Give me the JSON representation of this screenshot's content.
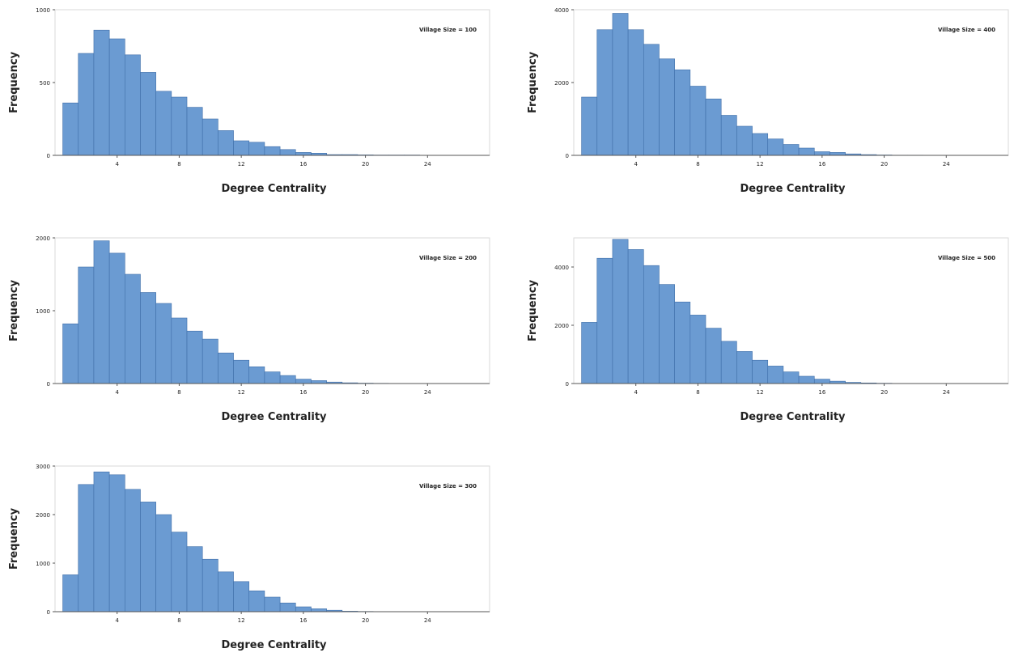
{
  "chart_data": [
    {
      "type": "bar",
      "annotation": "Village Size = 100",
      "xlabel": "Degree Centrality",
      "ylabel": "Frequency",
      "xlim": [
        0,
        28
      ],
      "ylim": [
        0,
        1000
      ],
      "xticks": [
        4,
        8,
        12,
        16,
        20,
        24
      ],
      "yticks": [
        0,
        500,
        1000
      ],
      "bin_width": 1,
      "x": [
        1,
        2,
        3,
        4,
        5,
        6,
        7,
        8,
        9,
        10,
        11,
        12,
        13,
        14,
        15,
        16,
        17,
        18,
        19,
        20,
        21,
        22,
        23,
        24,
        25,
        26,
        27
      ],
      "values": [
        360,
        700,
        860,
        800,
        690,
        570,
        440,
        400,
        330,
        250,
        170,
        100,
        90,
        60,
        40,
        20,
        15,
        5,
        5,
        3,
        2,
        2,
        2,
        1,
        1,
        1,
        1
      ],
      "color": "#6b9bd2",
      "edge_color": "#3f6ea8"
    },
    {
      "type": "bar",
      "annotation": "Village Size = 400",
      "xlabel": "Degree Centrality",
      "ylabel": "Frequency",
      "xlim": [
        0,
        28
      ],
      "ylim": [
        0,
        4000
      ],
      "xticks": [
        4,
        8,
        12,
        16,
        20,
        24
      ],
      "yticks": [
        0,
        2000,
        4000
      ],
      "bin_width": 1,
      "x": [
        1,
        2,
        3,
        4,
        5,
        6,
        7,
        8,
        9,
        10,
        11,
        12,
        13,
        14,
        15,
        16,
        17,
        18,
        19,
        20,
        21,
        22,
        23,
        24,
        25,
        26,
        27
      ],
      "values": [
        1600,
        3450,
        3900,
        3450,
        3050,
        2650,
        2350,
        1900,
        1550,
        1100,
        800,
        600,
        450,
        300,
        200,
        100,
        80,
        40,
        20,
        10,
        5,
        5,
        2,
        2,
        1,
        1,
        1
      ],
      "color": "#6b9bd2",
      "edge_color": "#3f6ea8"
    },
    {
      "type": "bar",
      "annotation": "Village Size = 200",
      "xlabel": "Degree Centrality",
      "ylabel": "Frequency",
      "xlim": [
        0,
        28
      ],
      "ylim": [
        0,
        2000
      ],
      "xticks": [
        4,
        8,
        12,
        16,
        20,
        24
      ],
      "yticks": [
        0,
        1000,
        2000
      ],
      "bin_width": 1,
      "x": [
        1,
        2,
        3,
        4,
        5,
        6,
        7,
        8,
        9,
        10,
        11,
        12,
        13,
        14,
        15,
        16,
        17,
        18,
        19,
        20,
        21,
        22,
        23,
        24,
        25,
        26,
        27
      ],
      "values": [
        820,
        1600,
        1960,
        1790,
        1500,
        1250,
        1100,
        900,
        720,
        610,
        420,
        320,
        230,
        160,
        110,
        60,
        40,
        20,
        10,
        5,
        3,
        2,
        2,
        1,
        1,
        1,
        1
      ],
      "color": "#6b9bd2",
      "edge_color": "#3f6ea8"
    },
    {
      "type": "bar",
      "annotation": "Village Size = 500",
      "xlabel": "Degree Centrality",
      "ylabel": "Frequency",
      "xlim": [
        0,
        28
      ],
      "ylim": [
        0,
        5000
      ],
      "xticks": [
        4,
        8,
        12,
        16,
        20,
        24
      ],
      "yticks": [
        0,
        2000,
        4000
      ],
      "bin_width": 1,
      "x": [
        1,
        2,
        3,
        4,
        5,
        6,
        7,
        8,
        9,
        10,
        11,
        12,
        13,
        14,
        15,
        16,
        17,
        18,
        19,
        20,
        21,
        22,
        23,
        24,
        25,
        26,
        27
      ],
      "values": [
        2100,
        4300,
        4950,
        4600,
        4050,
        3400,
        2800,
        2350,
        1900,
        1450,
        1100,
        800,
        600,
        400,
        250,
        150,
        80,
        40,
        20,
        10,
        5,
        2,
        2,
        1,
        1,
        1,
        1
      ],
      "color": "#6b9bd2",
      "edge_color": "#3f6ea8"
    },
    {
      "type": "bar",
      "annotation": "Village Size = 300",
      "xlabel": "Degree Centrality",
      "ylabel": "Frequency",
      "xlim": [
        0,
        28
      ],
      "ylim": [
        0,
        3000
      ],
      "xticks": [
        4,
        8,
        12,
        16,
        20,
        24
      ],
      "yticks": [
        0,
        1000,
        2000,
        3000
      ],
      "bin_width": 1,
      "x": [
        1,
        2,
        3,
        4,
        5,
        6,
        7,
        8,
        9,
        10,
        11,
        12,
        13,
        14,
        15,
        16,
        17,
        18,
        19,
        20,
        21,
        22,
        23,
        24,
        25,
        26,
        27
      ],
      "values": [
        760,
        2620,
        2880,
        2820,
        2520,
        2260,
        2000,
        1640,
        1340,
        1080,
        820,
        620,
        430,
        300,
        180,
        100,
        60,
        30,
        10,
        5,
        3,
        2,
        2,
        1,
        1,
        1,
        1
      ],
      "color": "#6b9bd2",
      "edge_color": "#3f6ea8"
    }
  ]
}
